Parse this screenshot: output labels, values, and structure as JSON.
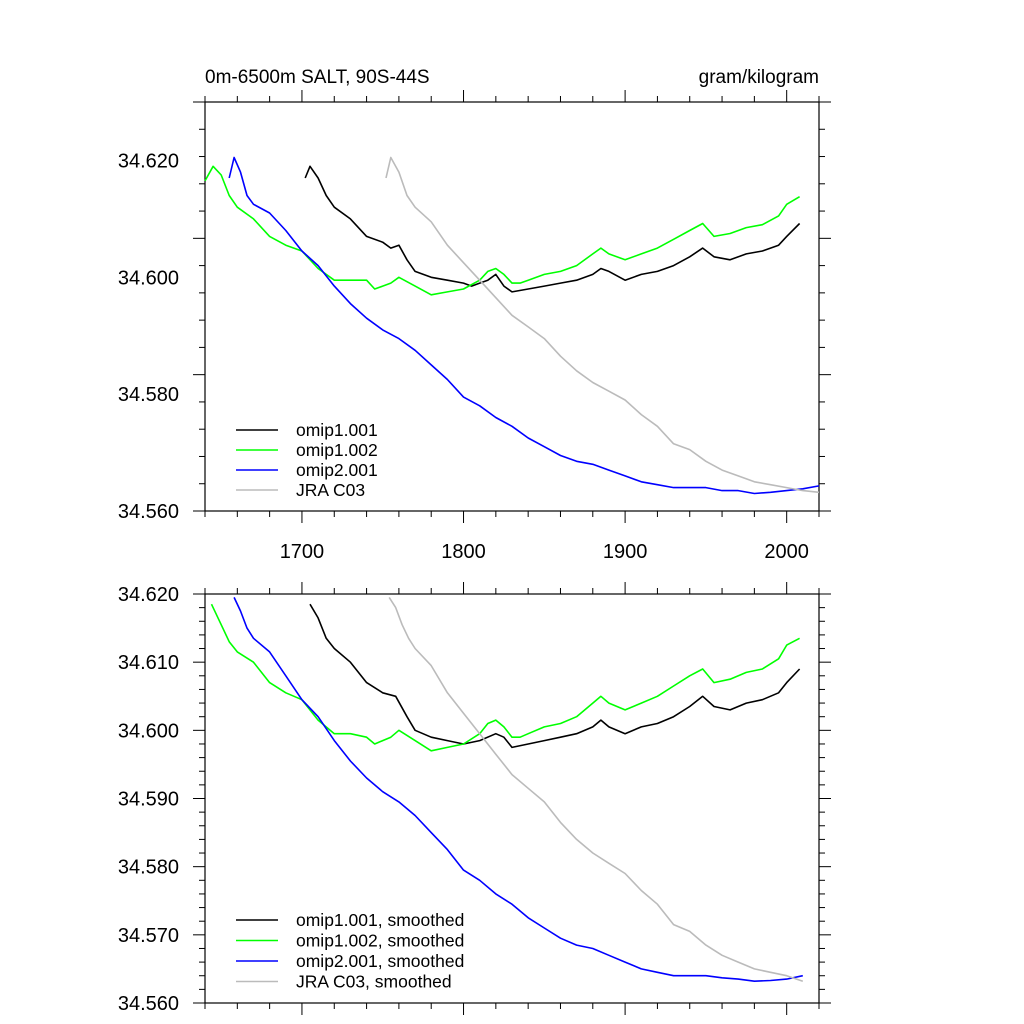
{
  "chart_data": [
    {
      "type": "line",
      "title_left": "0m-6500m SALT, 90S-44S",
      "title_right": "gram/kilogram",
      "xlim": [
        1640,
        2020
      ],
      "ylim": [
        34.56,
        34.63
      ],
      "x_ticks": [
        1700,
        1800,
        1900,
        2000
      ],
      "x_tick_labels": [
        "1700",
        "1800",
        "1900",
        "2000"
      ],
      "y_ticks": [
        34.56,
        34.58,
        34.6,
        34.62
      ],
      "y_tick_labels": [
        "34.560",
        "34.580",
        "34.600",
        "34.620"
      ],
      "legend_position": "bottom-left",
      "series": [
        {
          "name": "omip1.001",
          "color": "#000000",
          "x": [
            1702,
            1705,
            1710,
            1715,
            1720,
            1730,
            1740,
            1750,
            1755,
            1760,
            1765,
            1770,
            1780,
            1790,
            1800,
            1805,
            1810,
            1815,
            1820,
            1825,
            1830,
            1840,
            1850,
            1860,
            1870,
            1880,
            1885,
            1890,
            1900,
            1910,
            1920,
            1930,
            1940,
            1948,
            1955,
            1965,
            1975,
            1985,
            1995,
            2000,
            2008
          ],
          "y": [
            34.617,
            34.619,
            34.617,
            34.614,
            34.612,
            34.61,
            34.607,
            34.606,
            34.605,
            34.6055,
            34.603,
            34.601,
            34.6,
            34.5995,
            34.599,
            34.5985,
            34.599,
            34.5995,
            34.6005,
            34.5985,
            34.5975,
            34.598,
            34.5985,
            34.599,
            34.5995,
            34.6005,
            34.6015,
            34.601,
            34.5995,
            34.6005,
            34.601,
            34.602,
            34.6035,
            34.605,
            34.6035,
            34.603,
            34.604,
            34.6045,
            34.6055,
            34.607,
            34.6092
          ]
        },
        {
          "name": "omip1.002",
          "color": "#00ff00",
          "x": [
            1640,
            1645,
            1650,
            1655,
            1660,
            1670,
            1680,
            1690,
            1700,
            1710,
            1720,
            1730,
            1740,
            1745,
            1750,
            1755,
            1760,
            1770,
            1780,
            1790,
            1800,
            1810,
            1815,
            1820,
            1825,
            1830,
            1835,
            1840,
            1850,
            1860,
            1870,
            1880,
            1885,
            1890,
            1900,
            1910,
            1920,
            1930,
            1940,
            1948,
            1955,
            1965,
            1975,
            1985,
            1995,
            2000,
            2008
          ],
          "y": [
            34.6165,
            34.619,
            34.6175,
            34.614,
            34.612,
            34.61,
            34.607,
            34.6055,
            34.6045,
            34.6015,
            34.5995,
            34.5995,
            34.5995,
            34.598,
            34.5985,
            34.599,
            34.6,
            34.5985,
            34.597,
            34.5975,
            34.598,
            34.5995,
            34.601,
            34.6015,
            34.6005,
            34.599,
            34.599,
            34.5995,
            34.6005,
            34.601,
            34.602,
            34.604,
            34.605,
            34.604,
            34.603,
            34.604,
            34.605,
            34.6065,
            34.608,
            34.6092,
            34.607,
            34.6075,
            34.6085,
            34.609,
            34.6105,
            34.6125,
            34.6138
          ]
        },
        {
          "name": "omip2.001",
          "color": "#0000ff",
          "x": [
            1655,
            1658,
            1662,
            1666,
            1670,
            1680,
            1690,
            1700,
            1710,
            1720,
            1730,
            1740,
            1750,
            1760,
            1770,
            1780,
            1790,
            1800,
            1810,
            1820,
            1830,
            1840,
            1850,
            1860,
            1870,
            1880,
            1890,
            1900,
            1910,
            1920,
            1930,
            1940,
            1950,
            1960,
            1970,
            1980,
            1990,
            2000,
            2010,
            2020
          ],
          "y": [
            34.617,
            34.6205,
            34.618,
            34.614,
            34.6125,
            34.611,
            34.608,
            34.6045,
            34.602,
            34.5985,
            34.5955,
            34.593,
            34.591,
            34.5895,
            34.5875,
            34.585,
            34.5825,
            34.5795,
            34.578,
            34.576,
            34.5745,
            34.5725,
            34.571,
            34.5695,
            34.5685,
            34.568,
            34.567,
            34.566,
            34.565,
            34.5645,
            34.564,
            34.564,
            34.564,
            34.5635,
            34.5635,
            34.563,
            34.5632,
            34.5635,
            34.5638,
            34.5643
          ]
        },
        {
          "name": "JRA C03",
          "color": "#bbbbbb",
          "x": [
            1752,
            1755,
            1760,
            1765,
            1770,
            1780,
            1790,
            1800,
            1810,
            1820,
            1830,
            1840,
            1850,
            1860,
            1870,
            1880,
            1890,
            1900,
            1910,
            1920,
            1930,
            1940,
            1950,
            1960,
            1970,
            1980,
            1990,
            2000,
            2010,
            2020
          ],
          "y": [
            34.617,
            34.6205,
            34.618,
            34.614,
            34.612,
            34.6095,
            34.6055,
            34.6025,
            34.5995,
            34.5965,
            34.5935,
            34.5915,
            34.5895,
            34.5865,
            34.584,
            34.582,
            34.5805,
            34.579,
            34.5765,
            34.5745,
            34.5715,
            34.5705,
            34.5685,
            34.567,
            34.566,
            34.565,
            34.5645,
            34.564,
            34.5635,
            34.5632
          ]
        }
      ]
    },
    {
      "type": "line",
      "xlim": [
        1640,
        2020
      ],
      "ylim": [
        34.56,
        34.62
      ],
      "x_ticks": [
        1700,
        1800,
        1900,
        2000
      ],
      "y_ticks": [
        34.56,
        34.57,
        34.58,
        34.59,
        34.6,
        34.61,
        34.62
      ],
      "y_tick_labels": [
        "34.560",
        "34.570",
        "34.580",
        "34.590",
        "34.600",
        "34.610",
        "34.620"
      ],
      "legend_position": "bottom-left",
      "series": [
        {
          "name": "omip1.001, smoothed",
          "color": "#000000",
          "x": [
            1705,
            1710,
            1715,
            1720,
            1730,
            1740,
            1750,
            1758,
            1765,
            1770,
            1780,
            1790,
            1800,
            1810,
            1820,
            1825,
            1830,
            1840,
            1850,
            1860,
            1870,
            1880,
            1885,
            1890,
            1900,
            1910,
            1920,
            1930,
            1940,
            1948,
            1955,
            1965,
            1975,
            1985,
            1995,
            2000,
            2008
          ],
          "y": [
            34.6185,
            34.6165,
            34.6135,
            34.612,
            34.61,
            34.607,
            34.6055,
            34.605,
            34.602,
            34.6,
            34.599,
            34.5985,
            34.598,
            34.5985,
            34.5995,
            34.599,
            34.5975,
            34.598,
            34.5985,
            34.599,
            34.5995,
            34.6005,
            34.6015,
            34.6005,
            34.5995,
            34.6005,
            34.601,
            34.602,
            34.6035,
            34.605,
            34.6035,
            34.603,
            34.604,
            34.6045,
            34.6055,
            34.607,
            34.609
          ]
        },
        {
          "name": "omip1.002, smoothed",
          "color": "#00ff00",
          "x": [
            1644,
            1650,
            1655,
            1660,
            1670,
            1680,
            1690,
            1700,
            1710,
            1720,
            1730,
            1740,
            1745,
            1750,
            1755,
            1760,
            1770,
            1780,
            1790,
            1800,
            1810,
            1815,
            1820,
            1825,
            1830,
            1835,
            1840,
            1850,
            1860,
            1870,
            1880,
            1885,
            1890,
            1900,
            1910,
            1920,
            1930,
            1940,
            1948,
            1955,
            1965,
            1975,
            1985,
            1995,
            2000,
            2008
          ],
          "y": [
            34.6185,
            34.6155,
            34.613,
            34.6115,
            34.61,
            34.607,
            34.6055,
            34.6045,
            34.6015,
            34.5995,
            34.5995,
            34.599,
            34.598,
            34.5985,
            34.599,
            34.6,
            34.5985,
            34.597,
            34.5975,
            34.598,
            34.5995,
            34.601,
            34.6015,
            34.6005,
            34.599,
            34.599,
            34.5995,
            34.6005,
            34.601,
            34.602,
            34.604,
            34.605,
            34.604,
            34.603,
            34.604,
            34.605,
            34.6065,
            34.608,
            34.609,
            34.607,
            34.6075,
            34.6085,
            34.609,
            34.6105,
            34.6125,
            34.6135
          ]
        },
        {
          "name": "omip2.001, smoothed",
          "color": "#0000ff",
          "x": [
            1658,
            1662,
            1666,
            1670,
            1680,
            1690,
            1700,
            1710,
            1720,
            1730,
            1740,
            1750,
            1760,
            1770,
            1780,
            1790,
            1800,
            1810,
            1820,
            1830,
            1840,
            1850,
            1860,
            1870,
            1880,
            1890,
            1900,
            1910,
            1920,
            1930,
            1940,
            1950,
            1960,
            1970,
            1980,
            1990,
            2000,
            2010
          ],
          "y": [
            34.6195,
            34.6175,
            34.615,
            34.6135,
            34.6115,
            34.608,
            34.6045,
            34.602,
            34.5985,
            34.5955,
            34.593,
            34.591,
            34.5895,
            34.5875,
            34.585,
            34.5825,
            34.5795,
            34.578,
            34.576,
            34.5745,
            34.5725,
            34.571,
            34.5695,
            34.5685,
            34.568,
            34.567,
            34.566,
            34.565,
            34.5645,
            34.564,
            34.564,
            34.564,
            34.5637,
            34.5635,
            34.5632,
            34.5633,
            34.5635,
            34.564
          ]
        },
        {
          "name": "JRA C03, smoothed",
          "color": "#bbbbbb",
          "x": [
            1754,
            1758,
            1762,
            1766,
            1770,
            1780,
            1790,
            1800,
            1810,
            1820,
            1830,
            1840,
            1850,
            1860,
            1870,
            1880,
            1890,
            1900,
            1910,
            1920,
            1930,
            1940,
            1950,
            1960,
            1970,
            1980,
            1990,
            2000,
            2010
          ],
          "y": [
            34.6195,
            34.618,
            34.6155,
            34.6135,
            34.612,
            34.6095,
            34.6055,
            34.6025,
            34.5995,
            34.5965,
            34.5935,
            34.5915,
            34.5895,
            34.5865,
            34.584,
            34.582,
            34.5805,
            34.579,
            34.5765,
            34.5745,
            34.5715,
            34.5705,
            34.5685,
            34.567,
            34.566,
            34.565,
            34.5645,
            34.564,
            34.5632
          ]
        }
      ]
    }
  ]
}
